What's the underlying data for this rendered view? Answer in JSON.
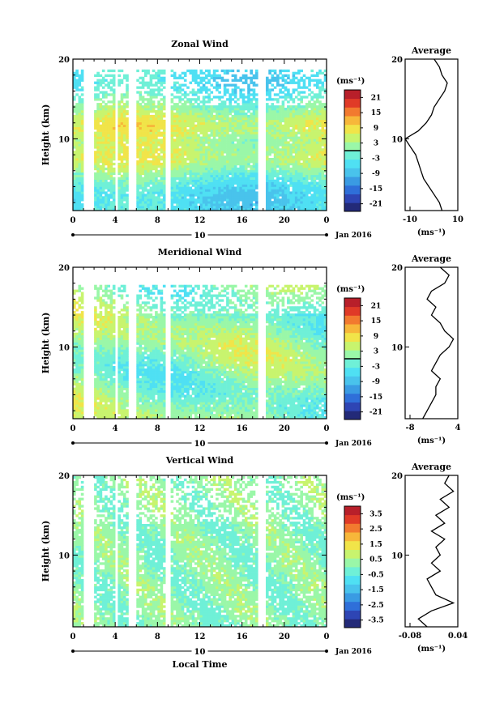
{
  "chart_data": [
    {
      "type": "heatmap",
      "title": "Zonal Wind",
      "ylabel": "Height (km)",
      "xlabel": "",
      "xlim": [
        0,
        24
      ],
      "ylim": [
        1,
        20
      ],
      "x_ticks": [
        "0",
        "4",
        "8",
        "12",
        "16",
        "20",
        "0"
      ],
      "y_ticks": [
        "20",
        "10"
      ],
      "day_axis_label": "10",
      "date_label": "Jan 2016",
      "colorbar": {
        "unit": "(ms⁻¹)",
        "ticks": [
          "21",
          "15",
          "9",
          "3",
          "-3",
          "-9",
          "-15",
          "-21"
        ],
        "range": [
          -24,
          24
        ],
        "zero_contour": true
      },
      "data_gaps_hours": [
        [
          0.8,
          1.9
        ],
        [
          4.0,
          4.2
        ],
        [
          5.2,
          5.9
        ],
        [
          8.6,
          9.2
        ],
        [
          17.4,
          18.1
        ]
      ],
      "average_profile": {
        "title": "Average",
        "xlabel": "(ms⁻¹)",
        "x_ticks": [
          "-10",
          "10"
        ],
        "xlim": [
          -10,
          10
        ],
        "y_ticks": [
          "20",
          "10"
        ],
        "heights_km": [
          1,
          2,
          3,
          4,
          5,
          6,
          7,
          8,
          9,
          10,
          11,
          12,
          13,
          14,
          15,
          16,
          17,
          18,
          19,
          20
        ],
        "values": [
          4,
          3,
          1,
          -1,
          -3,
          -4,
          -5,
          -6,
          -8,
          -10,
          -5,
          -2,
          0,
          1,
          3,
          5,
          6,
          4,
          3,
          1
        ]
      }
    },
    {
      "type": "heatmap",
      "title": "Meridional Wind",
      "ylabel": "Height (km)",
      "xlabel": "",
      "xlim": [
        0,
        24
      ],
      "ylim": [
        1,
        20
      ],
      "x_ticks": [
        "0",
        "4",
        "8",
        "12",
        "16",
        "20",
        "0"
      ],
      "y_ticks": [
        "20",
        "10"
      ],
      "day_axis_label": "10",
      "date_label": "Jan 2016",
      "colorbar": {
        "unit": "(ms⁻¹)",
        "ticks": [
          "21",
          "15",
          "9",
          "3",
          "-3",
          "-9",
          "-15",
          "-21"
        ],
        "range": [
          -24,
          24
        ],
        "zero_contour": true
      },
      "data_gaps_hours": [
        [
          0.8,
          1.9
        ],
        [
          4.0,
          4.2
        ],
        [
          5.2,
          5.9
        ],
        [
          8.6,
          9.2
        ],
        [
          17.4,
          18.1
        ]
      ],
      "average_profile": {
        "title": "Average",
        "xlabel": "(ms⁻¹)",
        "x_ticks": [
          "-8",
          "4"
        ],
        "xlim": [
          -8,
          4
        ],
        "y_ticks": [
          "20",
          "10"
        ],
        "heights_km": [
          1,
          2,
          3,
          4,
          5,
          6,
          7,
          8,
          9,
          10,
          11,
          12,
          13,
          14,
          15,
          16,
          17,
          18,
          19,
          20
        ],
        "values": [
          -4,
          -3,
          -2,
          -1,
          -1,
          0,
          -2,
          -1,
          0,
          2,
          3,
          1,
          0,
          -2,
          -1,
          -3,
          -2,
          1,
          2,
          0
        ]
      }
    },
    {
      "type": "heatmap",
      "title": "Vertical Wind",
      "ylabel": "Height (km)",
      "xlabel": "Local Time",
      "xlim": [
        0,
        24
      ],
      "ylim": [
        1,
        20
      ],
      "x_ticks": [
        "0",
        "4",
        "8",
        "12",
        "16",
        "20",
        "0"
      ],
      "y_ticks": [
        "20",
        "10"
      ],
      "day_axis_label": "10",
      "date_label": "Jan 2016",
      "colorbar": {
        "unit": "(ms⁻¹)",
        "ticks": [
          "3.5",
          "2.5",
          "1.5",
          "0.5",
          "-0.5",
          "-1.5",
          "-2.5",
          "-3.5"
        ],
        "range": [
          -4,
          4
        ],
        "zero_contour": false
      },
      "data_gaps_hours": [
        [
          0.8,
          1.9
        ],
        [
          4.0,
          4.2
        ],
        [
          5.2,
          5.9
        ],
        [
          8.6,
          9.2
        ],
        [
          17.4,
          18.1
        ]
      ],
      "average_profile": {
        "title": "Average",
        "xlabel": "(ms⁻¹)",
        "x_ticks": [
          "-0.08",
          "0.04"
        ],
        "xlim": [
          -0.08,
          0.04
        ],
        "y_ticks": [
          "20",
          "10"
        ],
        "heights_km": [
          1,
          2,
          3,
          4,
          5,
          6,
          7,
          8,
          9,
          10,
          11,
          12,
          13,
          14,
          15,
          16,
          17,
          18,
          19,
          20
        ],
        "values": [
          -0.03,
          -0.05,
          -0.02,
          0.03,
          -0.01,
          -0.02,
          -0.03,
          0.0,
          -0.02,
          0.0,
          -0.01,
          0.01,
          -0.02,
          0.01,
          -0.01,
          0.02,
          0.0,
          0.03,
          0.01,
          0.02
        ]
      }
    }
  ]
}
